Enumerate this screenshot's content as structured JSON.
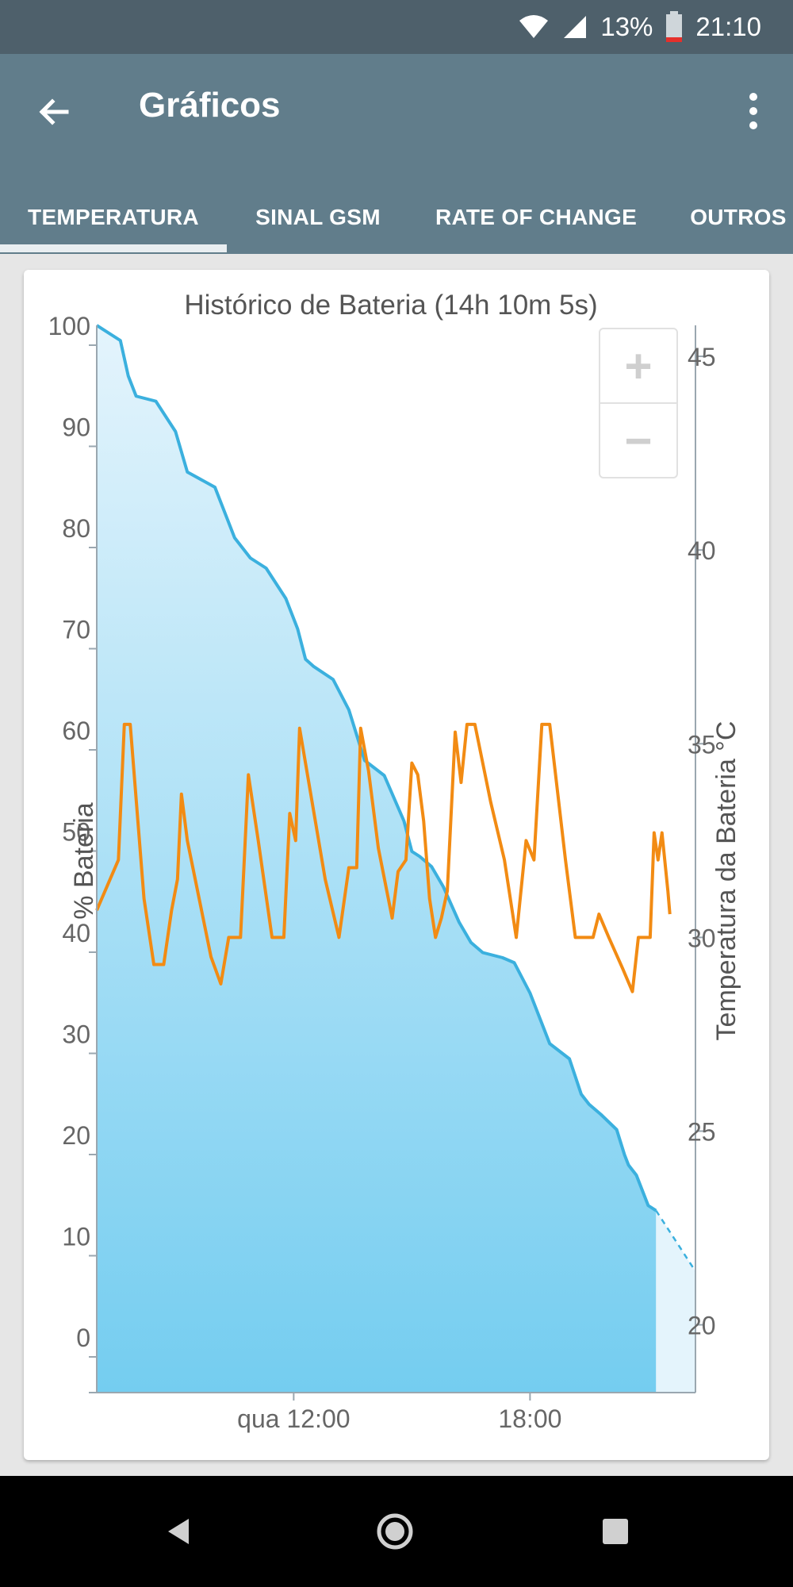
{
  "status_bar": {
    "battery_percent": "13%",
    "time": "21:10"
  },
  "app_bar": {
    "title": "Gráficos"
  },
  "tabs": [
    {
      "label": "TEMPERATURA",
      "selected": true
    },
    {
      "label": "SINAL GSM",
      "selected": false
    },
    {
      "label": "RATE OF CHANGE",
      "selected": false
    },
    {
      "label": "OUTROS",
      "selected": false
    }
  ],
  "zoom": {
    "plus": "+",
    "minus": "−"
  },
  "chart_data": {
    "type": "line",
    "title": "Histórico de Bateria (14h 10m 5s)",
    "ylabel_left": "% Bateria",
    "ylabel_right": "Temperatura da Bateria °C",
    "x_ticks": [
      "qua 12:00",
      "18:00"
    ],
    "y_left_ticks": [
      0,
      10,
      20,
      30,
      40,
      50,
      60,
      70,
      80,
      90,
      100
    ],
    "y_right_ticks": [
      20,
      25,
      30,
      35,
      40,
      45
    ],
    "ylim_left": [
      0,
      100
    ],
    "ylim_right": [
      18.25,
      45.8
    ],
    "xlim_hours": [
      7,
      22.2
    ],
    "series": [
      {
        "name": "% Bateria",
        "color": "#3bb0de",
        "fill": "area",
        "points": [
          [
            7.0,
            100
          ],
          [
            7.6,
            98.5
          ],
          [
            7.8,
            95
          ],
          [
            8.0,
            93
          ],
          [
            8.5,
            92.5
          ],
          [
            9.0,
            89.5
          ],
          [
            9.3,
            85.5
          ],
          [
            10.0,
            84
          ],
          [
            10.5,
            79
          ],
          [
            10.9,
            77
          ],
          [
            11.3,
            76
          ],
          [
            11.8,
            73
          ],
          [
            12.1,
            70
          ],
          [
            12.3,
            67
          ],
          [
            12.5,
            66.3
          ],
          [
            13.0,
            65
          ],
          [
            13.4,
            62
          ],
          [
            13.8,
            57
          ],
          [
            14.3,
            55.5
          ],
          [
            14.8,
            51
          ],
          [
            15.0,
            48
          ],
          [
            15.2,
            47.5
          ],
          [
            15.5,
            46.5
          ],
          [
            15.8,
            44.5
          ],
          [
            16.2,
            41
          ],
          [
            16.5,
            39
          ],
          [
            16.8,
            38
          ],
          [
            17.3,
            37.5
          ],
          [
            17.6,
            37
          ],
          [
            18.0,
            34
          ],
          [
            18.3,
            31
          ],
          [
            18.5,
            29
          ],
          [
            19.0,
            27.5
          ],
          [
            19.3,
            24
          ],
          [
            19.5,
            23
          ],
          [
            19.8,
            22
          ],
          [
            20.2,
            20.5
          ],
          [
            20.4,
            18
          ],
          [
            20.5,
            17
          ],
          [
            20.7,
            16
          ],
          [
            21.0,
            13
          ],
          [
            21.2,
            12.5
          ]
        ]
      },
      {
        "name": "Temperatura da Bateria °C",
        "color": "#f28b13",
        "points": [
          [
            7.0,
            30.7
          ],
          [
            7.55,
            32.0
          ],
          [
            7.7,
            35.5
          ],
          [
            7.85,
            35.5
          ],
          [
            8.2,
            31.0
          ],
          [
            8.45,
            29.3
          ],
          [
            8.7,
            29.3
          ],
          [
            8.9,
            30.7
          ],
          [
            9.05,
            31.5
          ],
          [
            9.15,
            33.7
          ],
          [
            9.3,
            32.5
          ],
          [
            9.6,
            31.0
          ],
          [
            9.9,
            29.5
          ],
          [
            10.15,
            28.8
          ],
          [
            10.35,
            30.0
          ],
          [
            10.65,
            30.0
          ],
          [
            10.85,
            34.2
          ],
          [
            11.1,
            32.5
          ],
          [
            11.45,
            30.0
          ],
          [
            11.75,
            30.0
          ],
          [
            11.9,
            33.2
          ],
          [
            12.05,
            32.5
          ],
          [
            12.15,
            35.4
          ],
          [
            12.3,
            34.5
          ],
          [
            12.8,
            31.5
          ],
          [
            13.15,
            30.0
          ],
          [
            13.4,
            31.8
          ],
          [
            13.6,
            31.8
          ],
          [
            13.7,
            35.4
          ],
          [
            13.9,
            34.3
          ],
          [
            14.15,
            32.3
          ],
          [
            14.5,
            30.5
          ],
          [
            14.65,
            31.7
          ],
          [
            14.85,
            32.0
          ],
          [
            15.0,
            34.5
          ],
          [
            15.15,
            34.2
          ],
          [
            15.3,
            33.0
          ],
          [
            15.45,
            31.0
          ],
          [
            15.6,
            30.0
          ],
          [
            15.75,
            30.5
          ],
          [
            15.9,
            31.2
          ],
          [
            16.1,
            35.3
          ],
          [
            16.25,
            34.0
          ],
          [
            16.4,
            35.5
          ],
          [
            16.6,
            35.5
          ],
          [
            17.0,
            33.5
          ],
          [
            17.35,
            32.0
          ],
          [
            17.65,
            30.0
          ],
          [
            17.9,
            32.5
          ],
          [
            18.1,
            32.0
          ],
          [
            18.3,
            35.5
          ],
          [
            18.5,
            35.5
          ],
          [
            18.9,
            32.0
          ],
          [
            19.15,
            30.0
          ],
          [
            19.6,
            30.0
          ],
          [
            19.75,
            30.6
          ],
          [
            20.0,
            30.0
          ],
          [
            20.35,
            29.2
          ],
          [
            20.6,
            28.6
          ],
          [
            20.75,
            30.0
          ],
          [
            21.05,
            30.0
          ],
          [
            21.15,
            32.7
          ],
          [
            21.25,
            32.0
          ],
          [
            21.35,
            32.7
          ],
          [
            21.5,
            31.2
          ],
          [
            21.55,
            30.6
          ]
        ]
      }
    ],
    "projection": {
      "from": [
        21.2,
        12.5
      ],
      "to": [
        22.2,
        6.5
      ],
      "style": "dashed"
    },
    "grid": false,
    "legend": "none"
  }
}
